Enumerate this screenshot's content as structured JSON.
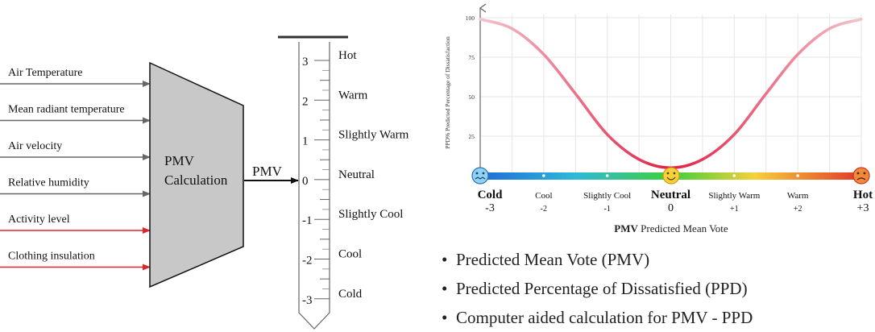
{
  "inputs": [
    {
      "label": "Air Temperature",
      "arrow_color": "#666666"
    },
    {
      "label": "Mean radiant temperature",
      "arrow_color": "#666666"
    },
    {
      "label": "Air velocity",
      "arrow_color": "#666666"
    },
    {
      "label": "Relative humidity",
      "arrow_color": "#666666"
    },
    {
      "label": "Activity level",
      "arrow_color": "#e0262a"
    },
    {
      "label": "Clothing insulation",
      "arrow_color": "#e0262a"
    }
  ],
  "calc_block": {
    "line1": "PMV",
    "line2": "Calculation",
    "fill": "#c8c8c8"
  },
  "output_label": "PMV",
  "thermometer": {
    "scale": [
      {
        "value": "3",
        "sensation": "Hot"
      },
      {
        "value": "2",
        "sensation": "Warm"
      },
      {
        "value": "1",
        "sensation": "Slightly Warm"
      },
      {
        "value": "0",
        "sensation": "Neutral"
      },
      {
        "value": "-1",
        "sensation": "Slightly Cool"
      },
      {
        "value": "-2",
        "sensation": "Cool"
      },
      {
        "value": "-3",
        "sensation": "Cold"
      }
    ]
  },
  "chart_data": {
    "type": "line",
    "x": [
      -3,
      -2.5,
      -2,
      -1.5,
      -1,
      -0.5,
      0,
      0.5,
      1,
      1.5,
      2,
      2.5,
      3
    ],
    "series": [
      {
        "values": [
          99.1,
          93.1,
          76.8,
          51.9,
          26.1,
          10.3,
          5.0,
          10.3,
          26.1,
          51.9,
          76.8,
          93.1,
          99.1
        ]
      }
    ],
    "xlim": [
      -3,
      3
    ],
    "ylim": [
      0,
      100
    ],
    "yticks": [
      "100",
      "75",
      "50",
      "25"
    ],
    "ylabel": "PPD% Predicted Percentage of Dissatisfaction",
    "xlabel_bold": "PMV",
    "xlabel_rest": " Predicted Mean Vote",
    "grid": true,
    "categories": [
      {
        "name": "Cold",
        "value": "-3",
        "bold": true
      },
      {
        "name": "Cool",
        "value": "-2",
        "bold": false
      },
      {
        "name": "Slightly Cool",
        "value": "-1",
        "bold": false
      },
      {
        "name": "Neutral",
        "value": "0",
        "bold": true
      },
      {
        "name": "Slightly Warm",
        "value": "+1",
        "bold": false
      },
      {
        "name": "Warm",
        "value": "+2",
        "bold": false
      },
      {
        "name": "Hot",
        "value": "+3",
        "bold": true
      }
    ],
    "colors": {
      "curve_ends": "#f3c4cc",
      "curve_center": "#e01f45",
      "bar_cold": "#1e6ad8",
      "bar_neutral": "#3ecf3a",
      "bar_warm": "#f5d13a",
      "bar_hot": "#e2362a"
    },
    "icons": [
      "cold-face-icon",
      "happy-face-icon",
      "hot-face-icon"
    ]
  },
  "bullets": [
    "Predicted Mean Vote (PMV)",
    "Predicted Percentage of Dissatisfied (PPD)",
    "Computer aided calculation for PMV - PPD"
  ]
}
